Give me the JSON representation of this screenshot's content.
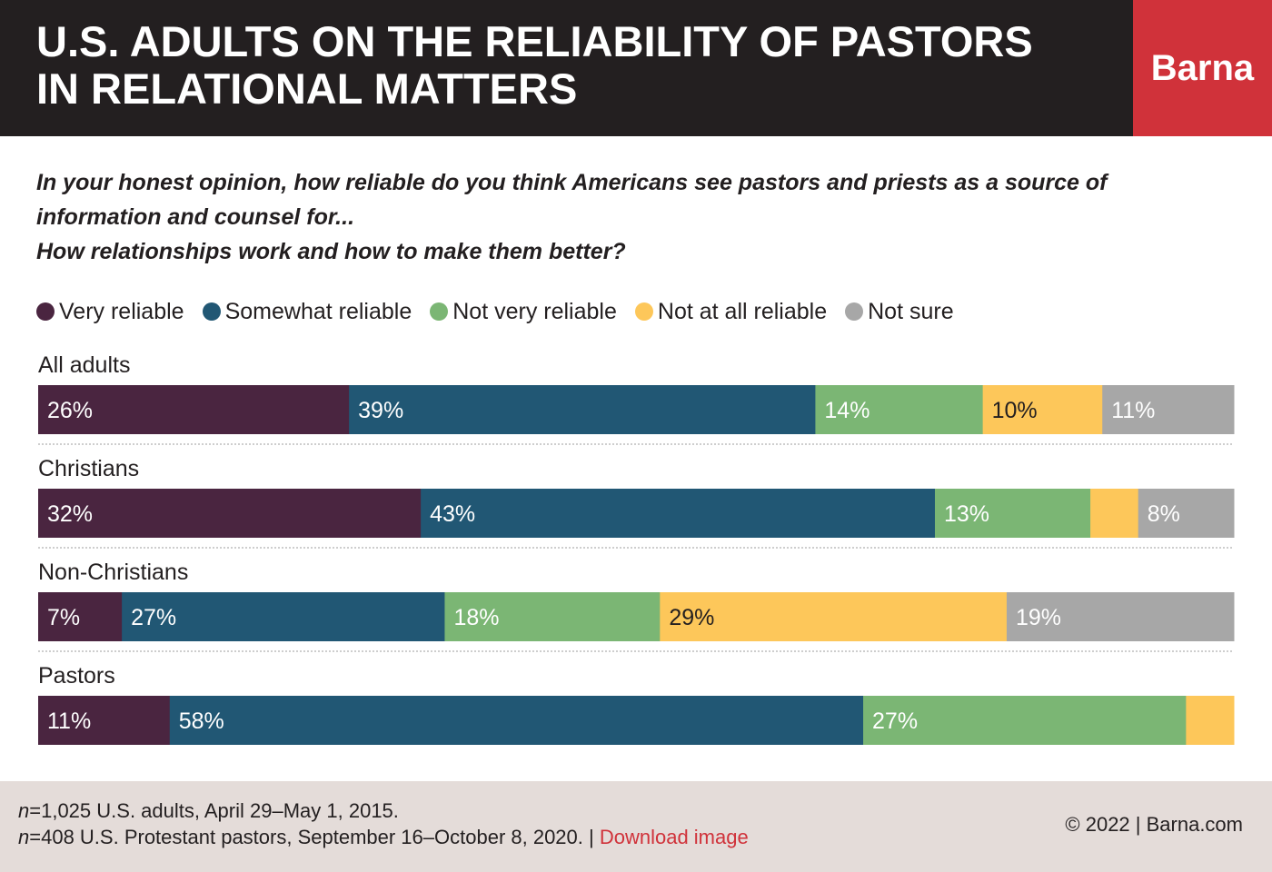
{
  "header": {
    "title_line1": "U.S. ADULTS ON THE RELIABILITY OF PASTORS",
    "title_line2": "IN RELATIONAL MATTERS",
    "brand": "Barna"
  },
  "question": {
    "line1": "In your honest opinion, how reliable do you think Americans see pastors and priests as a source of",
    "line2": "information and counsel for...",
    "line3": "How relationships work and how to make them better?"
  },
  "chart_data": {
    "type": "bar",
    "orientation": "horizontal",
    "stacked": true,
    "title": "U.S. ADULTS ON THE RELIABILITY OF PASTORS IN RELATIONAL MATTERS",
    "categories": [
      "All adults",
      "Christians",
      "Non-Christians",
      "Pastors"
    ],
    "series": [
      {
        "name": "Very reliable",
        "color": "#4a2540",
        "values": [
          26,
          32,
          7,
          11
        ],
        "labels": [
          "26%",
          "32%",
          "7%",
          "11%"
        ]
      },
      {
        "name": "Somewhat reliable",
        "color": "#215774",
        "values": [
          39,
          43,
          27,
          58
        ],
        "labels": [
          "39%",
          "43%",
          "27%",
          "58%"
        ]
      },
      {
        "name": "Not very reliable",
        "color": "#7bb674",
        "values": [
          14,
          13,
          18,
          27
        ],
        "labels": [
          "14%",
          "13%",
          "18%",
          "27%"
        ]
      },
      {
        "name": "Not at all reliable",
        "color": "#fdc75a",
        "values": [
          10,
          4,
          29,
          4
        ],
        "labels": [
          "10%",
          "",
          "29%",
          ""
        ]
      },
      {
        "name": "Not sure",
        "color": "#a7a7a7",
        "values": [
          11,
          8,
          19,
          0
        ],
        "labels": [
          "11%",
          "8%",
          "19%",
          ""
        ]
      }
    ],
    "label_text_colors": [
      "#ffffff",
      "#ffffff",
      "#ffffff",
      "#231f20",
      "#ffffff"
    ],
    "xlim": [
      0,
      100
    ],
    "legend": "top-left",
    "grid": false
  },
  "footer": {
    "note_line1_prefix": "n",
    "note_line1_text": "=1,025 U.S. adults, April 29–May 1, 2015.",
    "note_line2_prefix": "n",
    "note_line2_text": "=408 U.S. Protestant pastors, September 16–October 8, 2020. | ",
    "download_link": "Download image",
    "copyright": "© 2022 |   Barna.com"
  }
}
